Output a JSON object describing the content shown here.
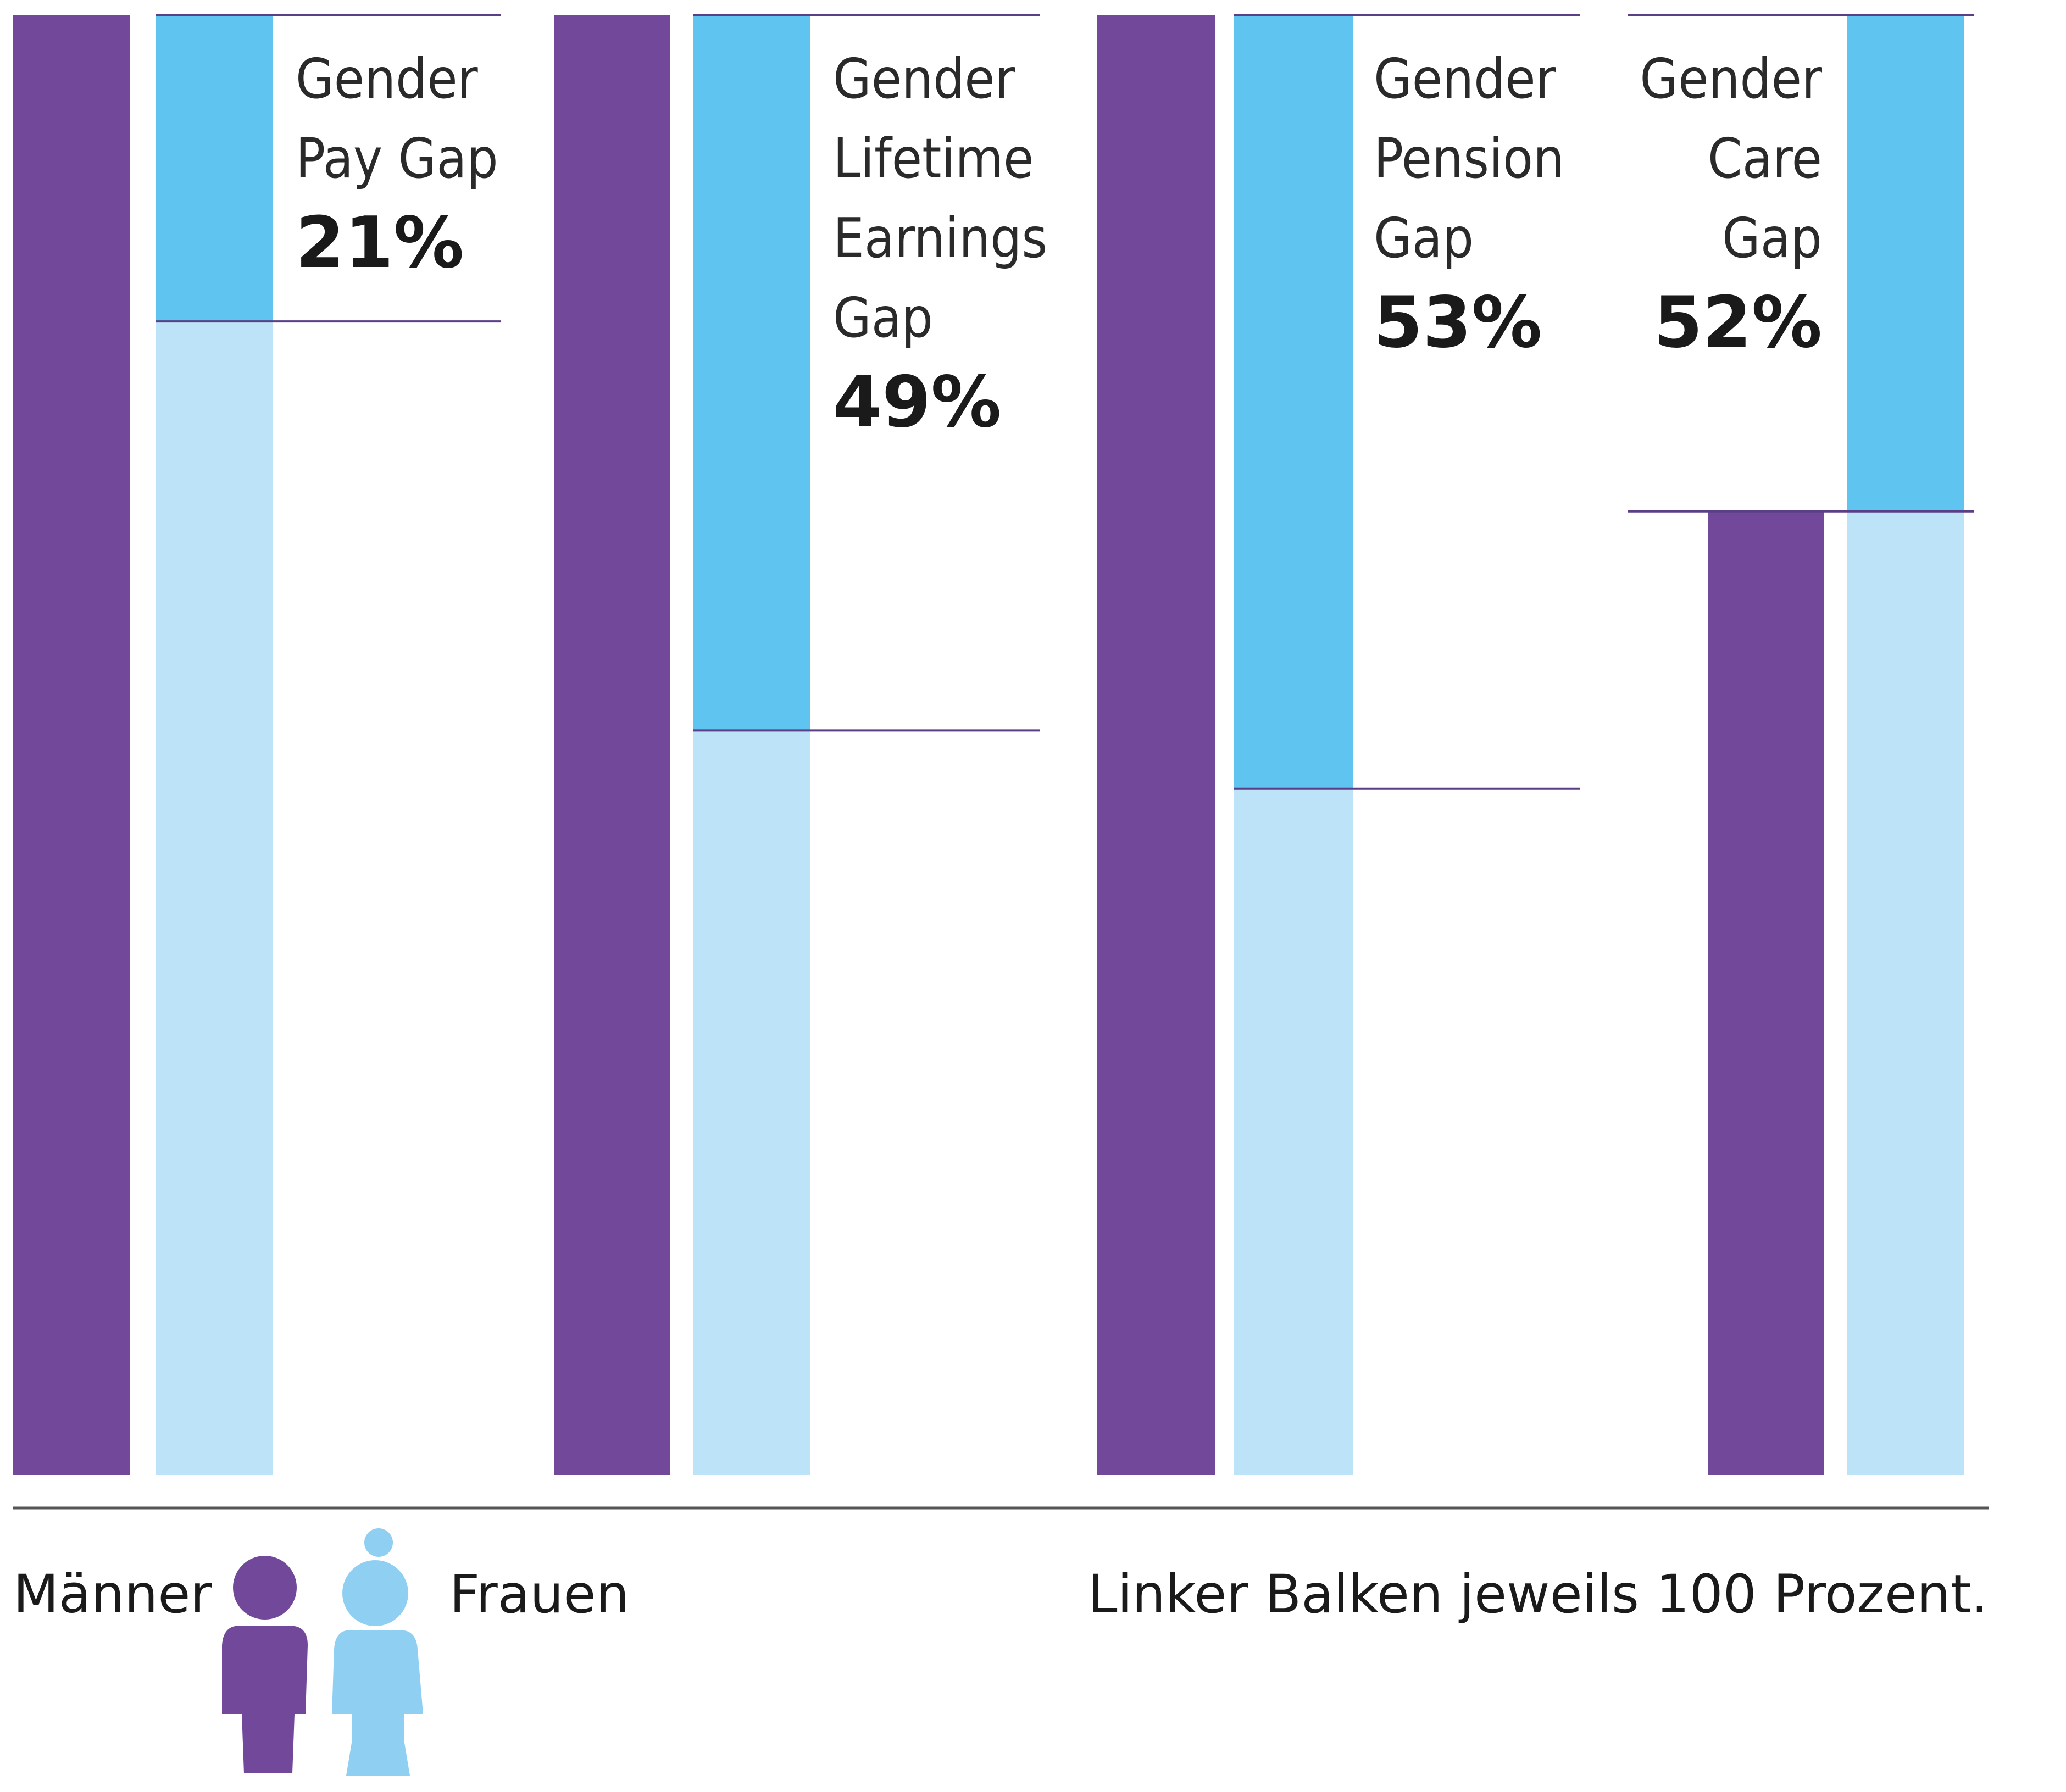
{
  "chart_data": {
    "type": "bar",
    "unit": "%",
    "categories": [
      "Gender Pay Gap",
      "Gender Lifetime Earnings Gap",
      "Gender Pension Gap",
      "Gender Care Gap"
    ],
    "groups": [
      {
        "label_lines": [
          "Gender",
          "Pay Gap"
        ],
        "gap_label": "21%",
        "gap": 21,
        "men": 100,
        "women": 79,
        "label_align": "left",
        "reference": "men"
      },
      {
        "label_lines": [
          "Gender",
          "Lifetime",
          "Earnings",
          "Gap"
        ],
        "gap_label": "49%",
        "gap": 49,
        "men": 100,
        "women": 51,
        "label_align": "left",
        "reference": "men"
      },
      {
        "label_lines": [
          "Gender",
          "Pension",
          "Gap"
        ],
        "gap_label": "53%",
        "gap": 53,
        "men": 100,
        "women": 47,
        "label_align": "left",
        "reference": "men"
      },
      {
        "label_lines": [
          "Gender",
          "Care",
          "Gap"
        ],
        "gap_label": "52%",
        "gap": 52,
        "men": 66,
        "women": 100,
        "label_align": "right",
        "reference": "women"
      }
    ],
    "legend": {
      "men": "Männer",
      "women": "Frauen"
    },
    "note": "Linker Balken jeweils 100 Prozent.",
    "colors": {
      "men": "#72489a",
      "women_base": "#bde3f8",
      "gap": "#5fc4ef",
      "line": "#5a3f87",
      "axis": "#555555",
      "icon_women": "#8fd0f2"
    }
  }
}
